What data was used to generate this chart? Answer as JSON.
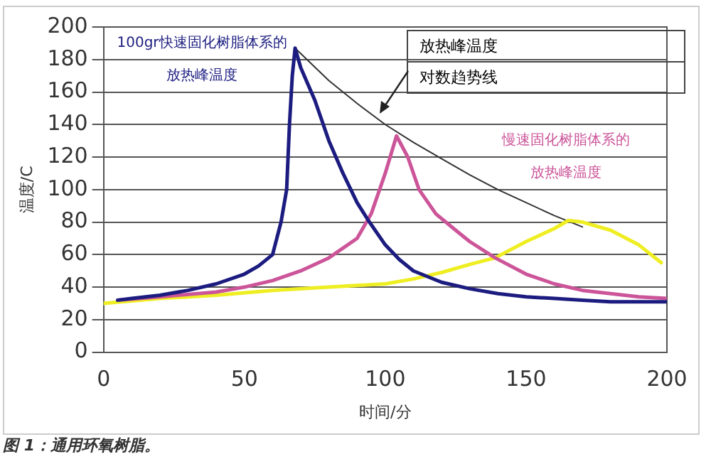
{
  "chart_data": {
    "type": "line",
    "xlabel": "时间/分",
    "ylabel": "温度/C",
    "xlim": [
      0,
      200
    ],
    "xticks": [
      0,
      50,
      100,
      150,
      200
    ],
    "ylim": [
      0,
      200
    ],
    "yticks": [
      0,
      20,
      40,
      60,
      80,
      100,
      120,
      140,
      160,
      180,
      200
    ],
    "grid": "y",
    "legend": false,
    "marker": "none",
    "line_style": "solid",
    "series": [
      {
        "color": "#1c1c80",
        "x": [
          5,
          10,
          20,
          30,
          40,
          50,
          55,
          60,
          63,
          65,
          66,
          67,
          68,
          70,
          75,
          80,
          85,
          90,
          94,
          100,
          105,
          110,
          120,
          130,
          140,
          150,
          160,
          170,
          180,
          190,
          200
        ],
        "values": [
          32,
          33,
          35,
          38,
          42,
          48,
          53,
          60,
          80,
          100,
          140,
          170,
          187,
          175,
          155,
          130,
          110,
          92,
          81,
          66,
          57,
          50,
          43,
          39,
          36,
          34,
          33,
          32,
          31,
          31,
          31
        ]
      },
      {
        "color": "#cc5599",
        "x": [
          5,
          20,
          40,
          50,
          60,
          70,
          80,
          90,
          95,
          100,
          104,
          108,
          112,
          118,
          125,
          130,
          139,
          150,
          160,
          170,
          180,
          190,
          200
        ],
        "values": [
          32,
          34,
          37,
          40,
          44,
          50,
          58,
          70,
          85,
          110,
          133,
          120,
          100,
          85,
          75,
          68,
          58,
          48,
          42,
          38,
          36,
          34,
          33
        ]
      },
      {
        "color": "#eeee22",
        "x": [
          0,
          20,
          40,
          60,
          80,
          100,
          110,
          120,
          130,
          139,
          150,
          160,
          165,
          170,
          180,
          190,
          198
        ],
        "values": [
          30,
          33,
          35,
          38,
          40,
          42,
          45,
          49,
          54,
          58,
          68,
          76,
          81,
          80,
          75,
          66,
          55
        ]
      },
      {
        "color": "#333333",
        "x": [
          68,
          80,
          90,
          100,
          110,
          120,
          130,
          140,
          150,
          160,
          170
        ],
        "values": [
          187,
          167,
          153,
          140,
          129,
          119,
          109,
          100,
          92,
          84,
          77
        ]
      }
    ],
    "annotations": [
      "100gr快速固化树脂体系的",
      "放热峰温度",
      "慢速固化树脂体系的",
      "放热峰温度",
      "放热峰温度",
      "对数趋势线",
      "图 1：通用环氧树脂。"
    ]
  }
}
